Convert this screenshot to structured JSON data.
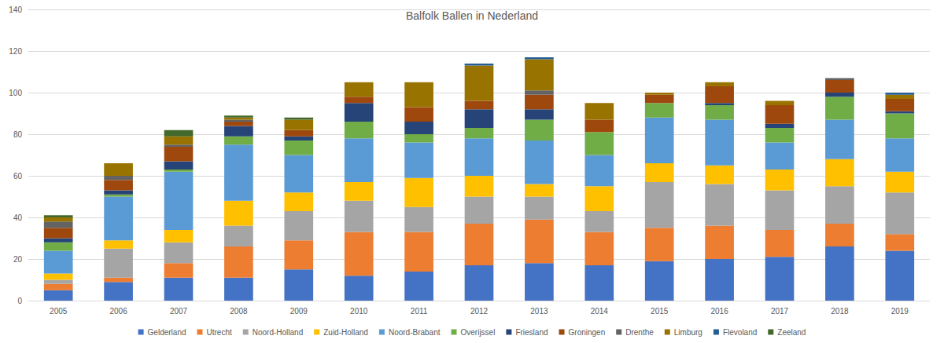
{
  "chart_data": {
    "type": "bar",
    "title": "Balfolk Ballen in Nederland",
    "stacked": true,
    "grid": true,
    "legend": "bottom",
    "categories": [
      "2005",
      "2006",
      "2007",
      "2008",
      "2009",
      "2010",
      "2011",
      "2012",
      "2013",
      "2014",
      "2015",
      "2016",
      "2017",
      "2018",
      "2019"
    ],
    "ylim": [
      0,
      140
    ],
    "yticks": [
      0,
      20,
      40,
      60,
      80,
      100,
      120,
      140
    ],
    "series": [
      {
        "name": "Gelderland",
        "color": "#4472c4",
        "values": [
          5,
          9,
          11,
          11,
          15,
          12,
          14,
          17,
          18,
          17,
          19,
          20,
          21,
          26,
          24
        ]
      },
      {
        "name": "Utrecht",
        "color": "#ed7d31",
        "values": [
          3,
          2,
          7,
          15,
          14,
          21,
          19,
          20,
          21,
          16,
          16,
          16,
          13,
          11,
          8
        ]
      },
      {
        "name": "Noord-Holland",
        "color": "#a5a5a5",
        "values": [
          2,
          14,
          10,
          10,
          14,
          15,
          12,
          13,
          11,
          10,
          22,
          20,
          19,
          18,
          20
        ]
      },
      {
        "name": "Zuid-Holland",
        "color": "#ffc000",
        "values": [
          3,
          4,
          6,
          12,
          9,
          9,
          14,
          10,
          6,
          12,
          9,
          9,
          10,
          13,
          10
        ]
      },
      {
        "name": "Noord-Brabant",
        "color": "#5b9bd5",
        "values": [
          11,
          21,
          28,
          27,
          18,
          21,
          17,
          18,
          21,
          15,
          22,
          22,
          13,
          19,
          16
        ]
      },
      {
        "name": "Overijssel",
        "color": "#70ad47",
        "values": [
          4,
          1,
          1,
          4,
          7,
          8,
          4,
          5,
          10,
          11,
          7,
          7,
          7,
          11,
          12
        ]
      },
      {
        "name": "Friesland",
        "color": "#264478",
        "values": [
          2,
          2,
          4,
          5,
          2,
          9,
          6,
          9,
          5,
          0,
          0,
          1,
          2,
          2,
          1
        ]
      },
      {
        "name": "Groningen",
        "color": "#9e480e",
        "values": [
          5,
          5,
          7,
          2,
          3,
          3,
          7,
          4,
          7,
          6,
          4,
          8,
          9,
          6,
          6
        ]
      },
      {
        "name": "Drenthe",
        "color": "#636363",
        "values": [
          3,
          2,
          1,
          1,
          0,
          0,
          0,
          0,
          2,
          0,
          0,
          0,
          0,
          1,
          0
        ]
      },
      {
        "name": "Limburg",
        "color": "#997300",
        "values": [
          2,
          6,
          4,
          1,
          5,
          7,
          12,
          17,
          15,
          8,
          1,
          2,
          2,
          0,
          2
        ]
      },
      {
        "name": "Flevoland",
        "color": "#255e91",
        "values": [
          0,
          0,
          0,
          0,
          0,
          0,
          0,
          1,
          1,
          0,
          0,
          0,
          0,
          0,
          1
        ]
      },
      {
        "name": "Zeeland",
        "color": "#43682b",
        "values": [
          1,
          0,
          3,
          1,
          1,
          0,
          0,
          0,
          0,
          0,
          0,
          0,
          0,
          0,
          0
        ]
      }
    ]
  }
}
